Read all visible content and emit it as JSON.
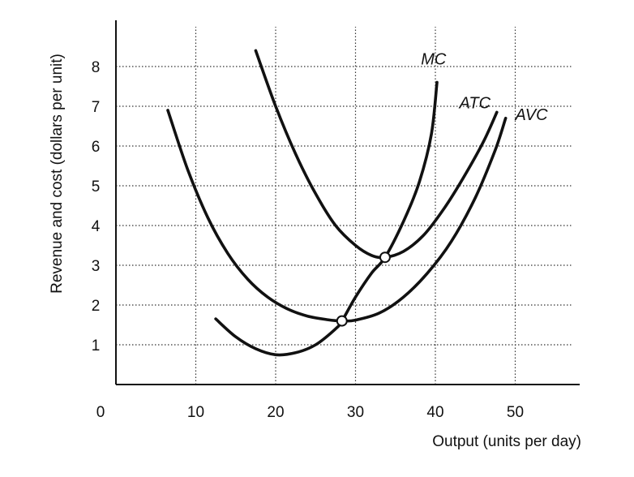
{
  "chart_data": {
    "type": "line",
    "title": "",
    "xlabel": "Output (units per day)",
    "ylabel": "Revenue and cost (dollars per unit)",
    "xlim": [
      0,
      57
    ],
    "ylim": [
      0,
      9
    ],
    "x_ticks": [
      0,
      10,
      20,
      30,
      40,
      50
    ],
    "y_ticks": [
      1,
      2,
      3,
      4,
      5,
      6,
      7,
      8
    ],
    "x_tick_labels": [
      "0",
      "10",
      "20",
      "30",
      "40",
      "50"
    ],
    "y_tick_labels": [
      "1",
      "2",
      "3",
      "4",
      "5",
      "6",
      "7",
      "8"
    ],
    "grid": "dotted lines at y ticks and x = 10, 20, 30, 40, 50",
    "series": [
      {
        "name": "MC",
        "color": "#111111",
        "points": [
          [
            12.5,
            1.65
          ],
          [
            15,
            1.2
          ],
          [
            17.5,
            0.9
          ],
          [
            20,
            0.75
          ],
          [
            22.5,
            0.8
          ],
          [
            25,
            1.0
          ],
          [
            27.5,
            1.4
          ],
          [
            28.3,
            1.6
          ],
          [
            30,
            2.2
          ],
          [
            32,
            2.8
          ],
          [
            33.7,
            3.2
          ],
          [
            36,
            4.1
          ],
          [
            38,
            5.1
          ],
          [
            39.5,
            6.3
          ],
          [
            40.2,
            7.6
          ]
        ]
      },
      {
        "name": "ATC",
        "color": "#111111",
        "points": [
          [
            17.5,
            8.4
          ],
          [
            20,
            7.0
          ],
          [
            22.5,
            5.8
          ],
          [
            25,
            4.8
          ],
          [
            27.5,
            4.0
          ],
          [
            30,
            3.5
          ],
          [
            32,
            3.25
          ],
          [
            33.7,
            3.2
          ],
          [
            36,
            3.35
          ],
          [
            38.5,
            3.75
          ],
          [
            41,
            4.4
          ],
          [
            43.5,
            5.2
          ],
          [
            46,
            6.1
          ],
          [
            47.7,
            6.85
          ]
        ]
      },
      {
        "name": "AVC",
        "color": "#111111",
        "points": [
          [
            6.5,
            6.9
          ],
          [
            9,
            5.4
          ],
          [
            11.5,
            4.2
          ],
          [
            14,
            3.3
          ],
          [
            16.5,
            2.65
          ],
          [
            19,
            2.2
          ],
          [
            21.5,
            1.9
          ],
          [
            24,
            1.72
          ],
          [
            26.5,
            1.63
          ],
          [
            28.3,
            1.6
          ],
          [
            30,
            1.62
          ],
          [
            33,
            1.8
          ],
          [
            36,
            2.2
          ],
          [
            39,
            2.8
          ],
          [
            42,
            3.6
          ],
          [
            45,
            4.7
          ],
          [
            47.5,
            5.9
          ],
          [
            48.8,
            6.7
          ]
        ]
      }
    ],
    "markers": [
      {
        "x": 28.3,
        "y": 1.6
      },
      {
        "x": 33.7,
        "y": 3.2
      }
    ],
    "labels": [
      {
        "text": "MC",
        "x": 38.2,
        "y": 8.05
      },
      {
        "text": "ATC",
        "x": 43.0,
        "y": 6.95
      },
      {
        "text": "AVC",
        "x": 50.0,
        "y": 6.65
      }
    ]
  }
}
